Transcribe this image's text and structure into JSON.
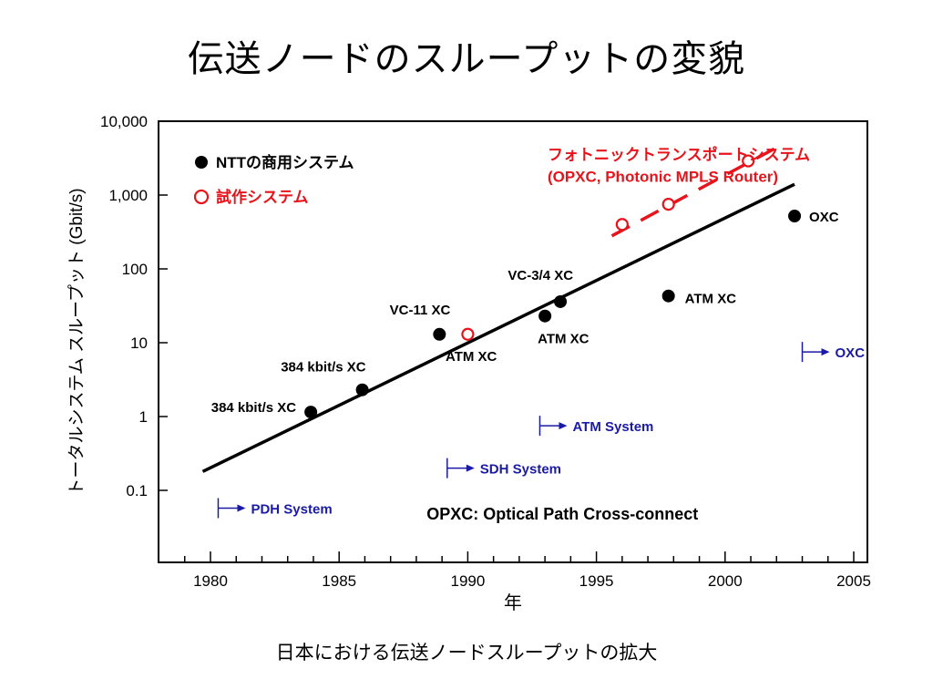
{
  "title": "伝送ノードのスループットの変貌",
  "caption": "日本における伝送ノードスループットの拡大",
  "chart_data": {
    "type": "scatter",
    "xlabel": "年",
    "ylabel": "トータルシステム スループット (Gbit/s)",
    "xlim": [
      1978,
      2005
    ],
    "ylim": [
      0.01,
      10000
    ],
    "yscale": "log",
    "xticks": [
      1980,
      1985,
      1990,
      1995,
      2000,
      2005
    ],
    "yticks": [
      {
        "value": 10000,
        "label": "10,000"
      },
      {
        "value": 1000,
        "label": "1,000"
      },
      {
        "value": 100,
        "label": "100"
      },
      {
        "value": 10,
        "label": "10"
      },
      {
        "value": 1,
        "label": "1"
      },
      {
        "value": 0.1,
        "label": "0.1"
      }
    ],
    "legend": [
      {
        "marker": "filled",
        "label": "NTTの商用システム",
        "color": "#000000"
      },
      {
        "marker": "open",
        "label": "試作システム",
        "color": "#e8141b"
      }
    ],
    "series": [
      {
        "name": "NTTの商用システム",
        "marker": "filled",
        "color": "#000000",
        "points": [
          {
            "x": 1983.9,
            "y": 1.15,
            "label": "384 kbit/s XC"
          },
          {
            "x": 1985.9,
            "y": 2.3,
            "label": "384 kbit/s XC"
          },
          {
            "x": 1988.9,
            "y": 13,
            "label": "VC-11 XC"
          },
          {
            "x": 1993.0,
            "y": 23,
            "label": "ATM XC"
          },
          {
            "x": 1993.6,
            "y": 36,
            "label": "VC-3/4 XC"
          },
          {
            "x": 1997.8,
            "y": 43,
            "label": "ATM XC"
          },
          {
            "x": 2002.7,
            "y": 520,
            "label": "OXC"
          }
        ]
      },
      {
        "name": "試作システム",
        "marker": "open",
        "color": "#e8141b",
        "points": [
          {
            "x": 1990.0,
            "y": 13,
            "label": "ATM XC"
          },
          {
            "x": 1996.0,
            "y": 400,
            "label": ""
          },
          {
            "x": 1997.8,
            "y": 750,
            "label": ""
          },
          {
            "x": 2000.9,
            "y": 2900,
            "label": ""
          }
        ]
      }
    ],
    "trend_lines": [
      {
        "style": "solid",
        "color": "#000000",
        "from": {
          "x": 1979.7,
          "y": 0.18
        },
        "to": {
          "x": 2002.7,
          "y": 1400
        }
      },
      {
        "style": "dashed",
        "color": "#e8141b",
        "from": {
          "x": 1995.6,
          "y": 280
        },
        "to": {
          "x": 2002.3,
          "y": 5000
        }
      }
    ],
    "annotations": [
      {
        "text": "フォトニックトランスポートシステム",
        "color": "#e8141b",
        "x": 1993.1,
        "y": 3000
      },
      {
        "text": "(OPXC, Photonic MPLS Router)",
        "color": "#e8141b",
        "x": 1993.1,
        "y": 1500
      },
      {
        "text": "OPXC: Optical Path Cross-connect",
        "color": "#000000",
        "x": 1988.4,
        "y": 0.04
      }
    ],
    "system_markers": [
      {
        "label": "PDH System",
        "x": 1980.3,
        "y": 0.0575,
        "color": "#1a1aa6"
      },
      {
        "label": "SDH System",
        "x": 1989.2,
        "y": 0.2,
        "color": "#1a1aa6"
      },
      {
        "label": "ATM System",
        "x": 1992.8,
        "y": 0.75,
        "color": "#1a1aa6"
      },
      {
        "label": "OXC",
        "x": 2003.0,
        "y": 7.5,
        "color": "#1a1aa6"
      }
    ]
  }
}
